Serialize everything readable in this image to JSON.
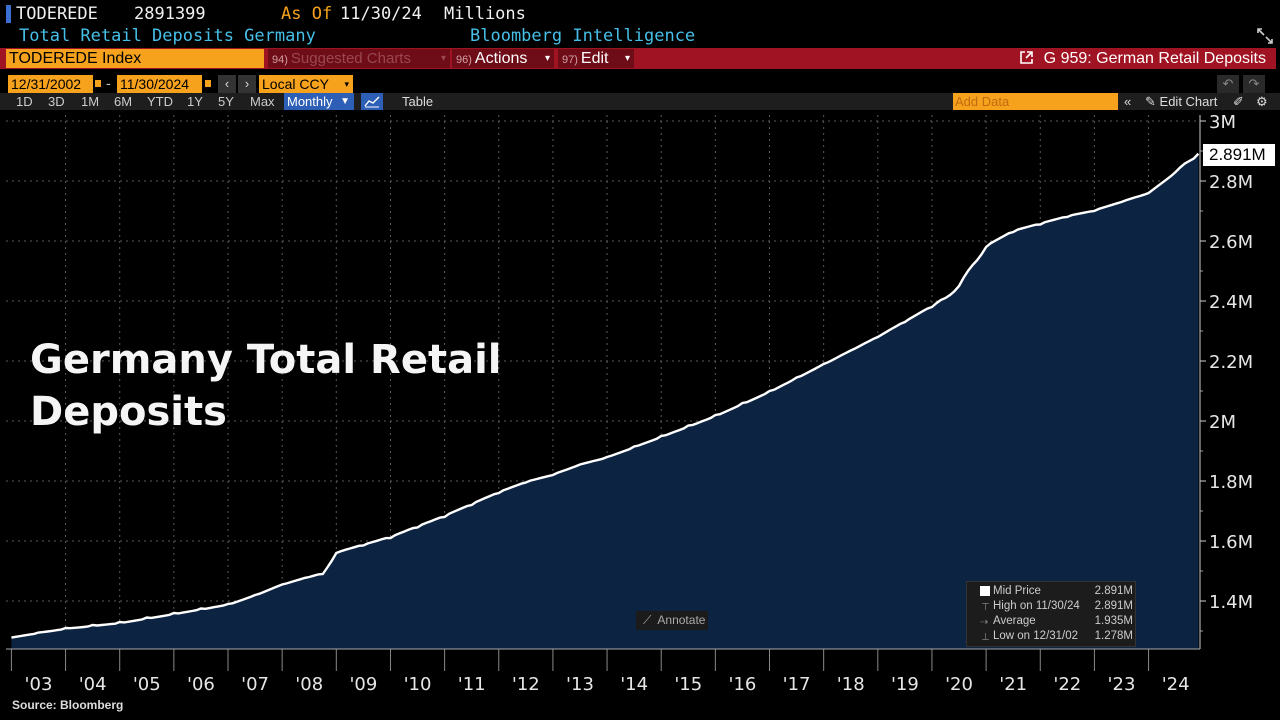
{
  "header": {
    "ticker": "TODEREDE",
    "last_value": "2891399",
    "as_of_label": "As Of",
    "as_of_date": "11/30/24",
    "units": "Millions",
    "description": "Total Retail Deposits Germany",
    "source_provider": "Bloomberg Intelligence"
  },
  "command_bar": {
    "security": "TODEREDE Index",
    "suggested_num": "94)",
    "suggested_label": "Suggested Charts",
    "actions_num": "96)",
    "actions_label": "Actions",
    "edit_num": "97)",
    "edit_label": "Edit",
    "chart_name": "G 959: German Retail Deposits"
  },
  "date_range": {
    "start": "12/31/2002",
    "end": "11/30/2024",
    "currency": "Local CCY"
  },
  "toolbar": {
    "periods": [
      "1D",
      "3D",
      "1M",
      "6M",
      "YTD",
      "1Y",
      "5Y",
      "Max"
    ],
    "frequency": "Monthly",
    "table_label": "Table",
    "add_data_placeholder": "Add Data",
    "edit_chart_label": "Edit Chart"
  },
  "overlay_title": [
    "Germany Total Retail",
    "Deposits"
  ],
  "annotate_label": "Annotate",
  "last_value_tag": "2.891M",
  "legend": {
    "rows": [
      {
        "label": "Mid Price",
        "value": "2.891M"
      },
      {
        "label": "High on 11/30/24",
        "value": "2.891M"
      },
      {
        "label": "Average",
        "value": "1.935M"
      },
      {
        "label": "Low on 12/31/02",
        "value": "1.278M"
      }
    ]
  },
  "source": "Source: Bloomberg",
  "colors": {
    "background": "#000000",
    "area_fill": "#0d2342",
    "line": "#ffffff",
    "accent_amber": "#f7a21c",
    "bar_red": "#a01322",
    "cyan_text": "#46c0e8"
  },
  "chart_data": {
    "type": "area",
    "title": "",
    "xlabel": "",
    "ylabel": "",
    "x_tick_labels": [
      "'03",
      "'04",
      "'05",
      "'06",
      "'07",
      "'08",
      "'09",
      "'10",
      "'11",
      "'12",
      "'13",
      "'14",
      "'15",
      "'16",
      "'17",
      "'18",
      "'19",
      "'20",
      "'21",
      "'22",
      "'23",
      "'24"
    ],
    "y_tick_labels": [
      "1.4M",
      "1.6M",
      "1.8M",
      "2M",
      "2.2M",
      "2.4M",
      "2.6M",
      "2.8M",
      "3M"
    ],
    "y_ticks": [
      1.4,
      1.6,
      1.8,
      2.0,
      2.2,
      2.4,
      2.6,
      2.8,
      3.0
    ],
    "ylim": [
      1.24,
      3.02
    ],
    "xlim": [
      2002.9,
      2024.95
    ],
    "grid": true,
    "series": [
      {
        "x": [
          2003.0,
          2003.5,
          2004.0,
          2004.5,
          2005.0,
          2005.5,
          2006.0,
          2006.5,
          2007.0,
          2007.5,
          2008.0,
          2008.5,
          2008.75,
          2009.0,
          2009.5,
          2010.0,
          2010.5,
          2011.0,
          2011.5,
          2012.0,
          2012.5,
          2013.0,
          2013.5,
          2014.0,
          2014.5,
          2015.0,
          2015.5,
          2016.0,
          2016.5,
          2017.0,
          2017.5,
          2018.0,
          2018.5,
          2019.0,
          2019.5,
          2020.0,
          2020.25,
          2020.5,
          2020.75,
          2021.0,
          2021.5,
          2022.0,
          2022.5,
          2023.0,
          2023.5,
          2024.0,
          2024.5,
          2024.92
        ],
        "y": [
          1.278,
          1.295,
          1.31,
          1.32,
          1.33,
          1.345,
          1.36,
          1.375,
          1.39,
          1.42,
          1.455,
          1.48,
          1.49,
          1.56,
          1.585,
          1.61,
          1.645,
          1.68,
          1.72,
          1.76,
          1.795,
          1.82,
          1.855,
          1.88,
          1.915,
          1.95,
          1.985,
          2.02,
          2.06,
          2.1,
          2.145,
          2.19,
          2.235,
          2.28,
          2.33,
          2.38,
          2.41,
          2.45,
          2.52,
          2.58,
          2.63,
          2.655,
          2.68,
          2.7,
          2.73,
          2.76,
          2.83,
          2.891
        ]
      }
    ]
  }
}
